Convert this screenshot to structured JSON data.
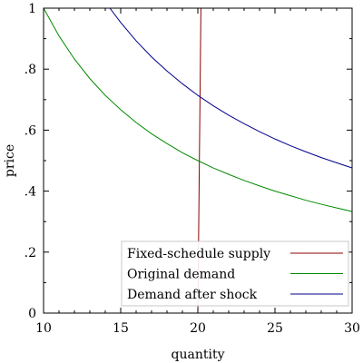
{
  "chart_data": {
    "type": "line",
    "xlabel": "quantity",
    "ylabel": "price",
    "xlim": [
      10,
      30
    ],
    "ylim": [
      0,
      1
    ],
    "x_ticks": [
      10,
      15,
      20,
      25,
      30
    ],
    "x_tick_labels": [
      "10",
      "15",
      "20",
      "25",
      "30"
    ],
    "y_ticks": [
      0,
      0.2,
      0.4,
      0.6,
      0.8,
      1
    ],
    "y_tick_labels": [
      "0",
      ".2",
      ".4",
      ".6",
      ".8",
      "1"
    ],
    "grid": false,
    "legend_position": "bottom-right",
    "series": [
      {
        "name": "Fixed-schedule supply",
        "color": "#8b0000",
        "x": [
          10,
          20,
          20.2
        ],
        "y": [
          0,
          0,
          1
        ]
      },
      {
        "name": "Original demand",
        "color": "#008b00",
        "x": [
          10,
          11,
          12,
          13,
          14,
          15,
          16,
          17,
          18,
          19,
          20,
          21,
          22,
          23,
          24,
          25,
          26,
          27,
          28,
          29,
          30
        ],
        "y": [
          1.0,
          0.909,
          0.833,
          0.769,
          0.714,
          0.667,
          0.625,
          0.588,
          0.556,
          0.526,
          0.5,
          0.476,
          0.455,
          0.435,
          0.417,
          0.4,
          0.385,
          0.37,
          0.357,
          0.345,
          0.333
        ]
      },
      {
        "name": "Demand after shock",
        "color": "#00008b",
        "x": [
          14.3,
          15,
          16,
          17,
          18,
          19,
          20,
          21,
          22,
          23,
          24,
          25,
          26,
          27,
          28,
          29,
          30
        ],
        "y": [
          1.0,
          0.953,
          0.893,
          0.84,
          0.794,
          0.752,
          0.714,
          0.68,
          0.649,
          0.621,
          0.595,
          0.571,
          0.549,
          0.529,
          0.51,
          0.493,
          0.476
        ]
      }
    ]
  }
}
